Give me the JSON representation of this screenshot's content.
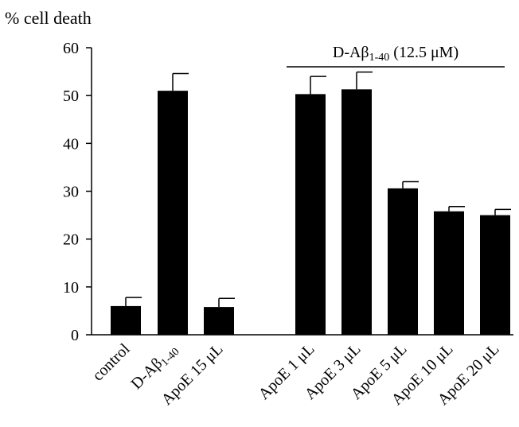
{
  "chart_data": {
    "type": "bar",
    "title": "",
    "ylabel": "% cell death",
    "xlabel": "",
    "ylim": [
      0,
      60
    ],
    "yticks": [
      0,
      10,
      20,
      30,
      40,
      50,
      60
    ],
    "grid": false,
    "legend": "none",
    "bar_color": "#000000",
    "categories": [
      {
        "main": "control",
        "sub": "",
        "post": ""
      },
      {
        "main": "D-Aβ",
        "sub": "1-40",
        "post": ""
      },
      {
        "main": "ApoE 15 μL",
        "sub": "",
        "post": ""
      },
      {
        "main": "ApoE 1 μL",
        "sub": "",
        "post": ""
      },
      {
        "main": "ApoE 3 μL",
        "sub": "",
        "post": ""
      },
      {
        "main": "ApoE 5 μL",
        "sub": "",
        "post": ""
      },
      {
        "main": "ApoE 10 μL",
        "sub": "",
        "post": ""
      },
      {
        "main": "ApoE 20 μL",
        "sub": "",
        "post": ""
      }
    ],
    "values": [
      6,
      51,
      5.8,
      50.3,
      51.3,
      30.6,
      25.8,
      25
    ],
    "errors": [
      1.8,
      3.6,
      1.8,
      3.7,
      3.6,
      1.4,
      1.0,
      1.2
    ],
    "bracket": {
      "main": "D-Aβ",
      "sub": "1-40",
      "post": "(12.5 μM)",
      "spans_categories": [
        3,
        7
      ]
    }
  }
}
